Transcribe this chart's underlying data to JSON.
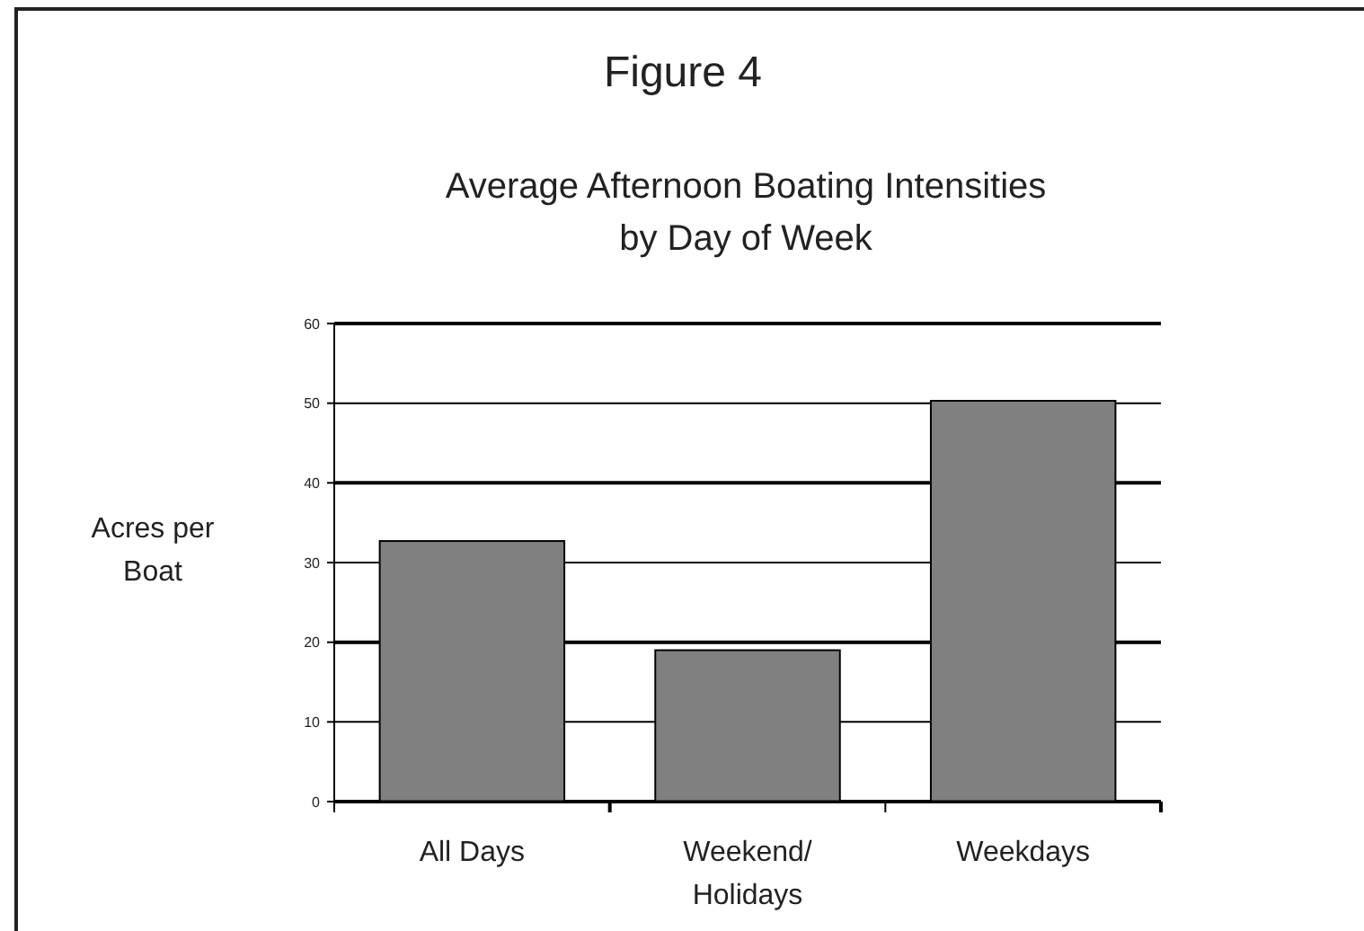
{
  "chart_data": {
    "type": "bar",
    "title": "Figure 4",
    "subtitle": "Average Afternoon Boating Intensities\nby Day of Week",
    "ylabel": "Acres per\nBoat",
    "categories": [
      "All Days",
      "Weekend/ Holidays",
      "Weekdays"
    ],
    "values": [
      32.7,
      19,
      50.3
    ],
    "color": "#808080",
    "ylim": [
      0,
      60
    ],
    "yticks": [
      0,
      10,
      20,
      30,
      40,
      50,
      60
    ],
    "grid": "y"
  }
}
